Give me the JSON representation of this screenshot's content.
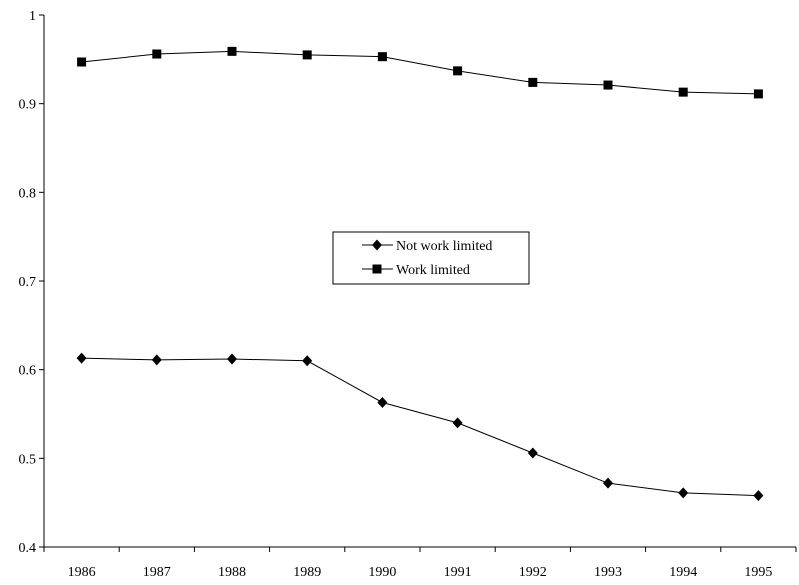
{
  "chart_data": {
    "type": "line",
    "title": "",
    "xlabel": "",
    "ylabel": "",
    "categories": [
      "1986",
      "1987",
      "1988",
      "1989",
      "1990",
      "1991",
      "1992",
      "1993",
      "1994",
      "1995"
    ],
    "ylim": [
      0.4,
      1.0
    ],
    "yticks": [
      "0.4",
      "0.5",
      "0.6",
      "0.7",
      "0.8",
      "0.9",
      "1"
    ],
    "grid": false,
    "legend_position": "center",
    "series": [
      {
        "name": "Not work limited",
        "marker": "diamond",
        "color": "#000000",
        "values": [
          0.613,
          0.611,
          0.612,
          0.61,
          0.563,
          0.54,
          0.506,
          0.472,
          0.461,
          0.458
        ]
      },
      {
        "name": "Work limited",
        "marker": "square",
        "color": "#000000",
        "values": [
          0.947,
          0.956,
          0.959,
          0.955,
          0.953,
          0.937,
          0.924,
          0.921,
          0.913,
          0.911
        ]
      }
    ]
  }
}
